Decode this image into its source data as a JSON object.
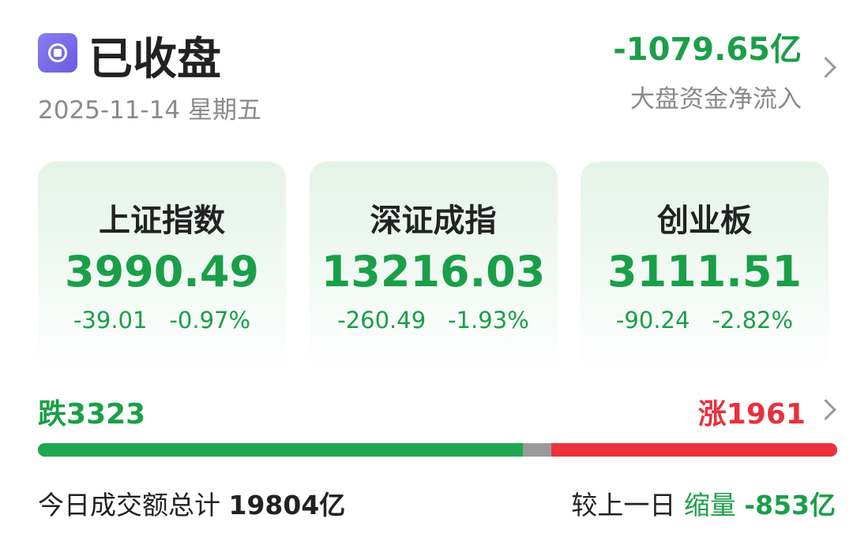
{
  "header": {
    "status": "已收盘",
    "date": "2025-11-14 星期五",
    "flow_value": "-1079.65亿",
    "flow_label": "大盘资金净流入"
  },
  "indices": [
    {
      "name": "上证指数",
      "value": "3990.49",
      "change": "-39.01",
      "pct": "-0.97%"
    },
    {
      "name": "深证成指",
      "value": "13216.03",
      "change": "-260.49",
      "pct": "-1.93%"
    },
    {
      "name": "创业板",
      "value": "3111.51",
      "change": "-90.24",
      "pct": "-2.82%"
    }
  ],
  "breadth": {
    "down_label": "跌",
    "down_count": 3323,
    "up_label": "涨",
    "up_count": 1961
  },
  "turnover": {
    "label": "今日成交额总计",
    "value": "19804亿",
    "compare_label": "较上一日",
    "compare_tag": "缩量",
    "compare_value": "-853亿"
  }
}
